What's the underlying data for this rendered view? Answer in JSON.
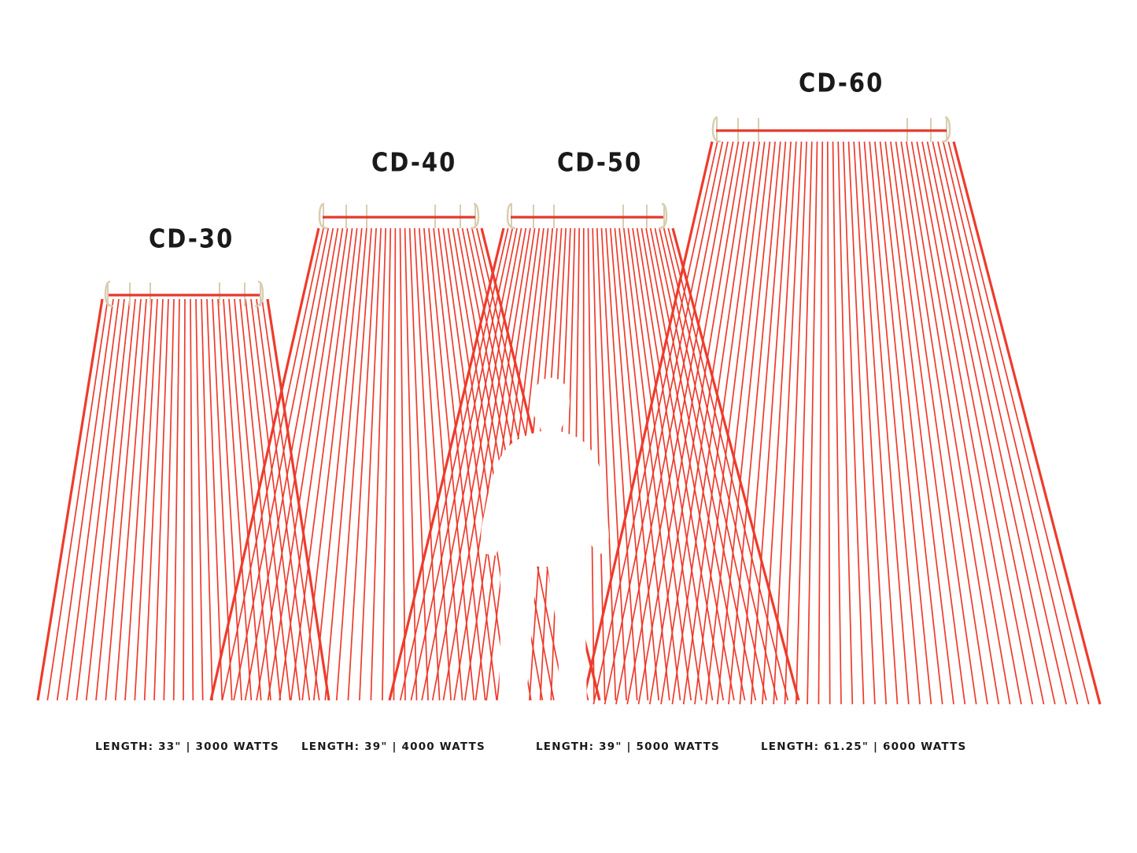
{
  "colors": {
    "line": "#ee3b2c",
    "rod": "#e23a2c",
    "hanger": "#d9cdb1",
    "text": "#1a1a1a",
    "background": "#ffffff"
  },
  "models": [
    {
      "name": "CD-30",
      "spec": "LENGTH: 33\" | 3000 WATTS"
    },
    {
      "name": "CD-40",
      "spec": "LENGTH: 39\" | 4000 WATTS"
    },
    {
      "name": "CD-50",
      "spec": "LENGTH: 39\" | 5000 WATTS"
    },
    {
      "name": "CD-60",
      "spec": "LENGTH: 61.25\" | 6000 WATTS"
    }
  ],
  "figure_icon": "human-silhouette-icon"
}
